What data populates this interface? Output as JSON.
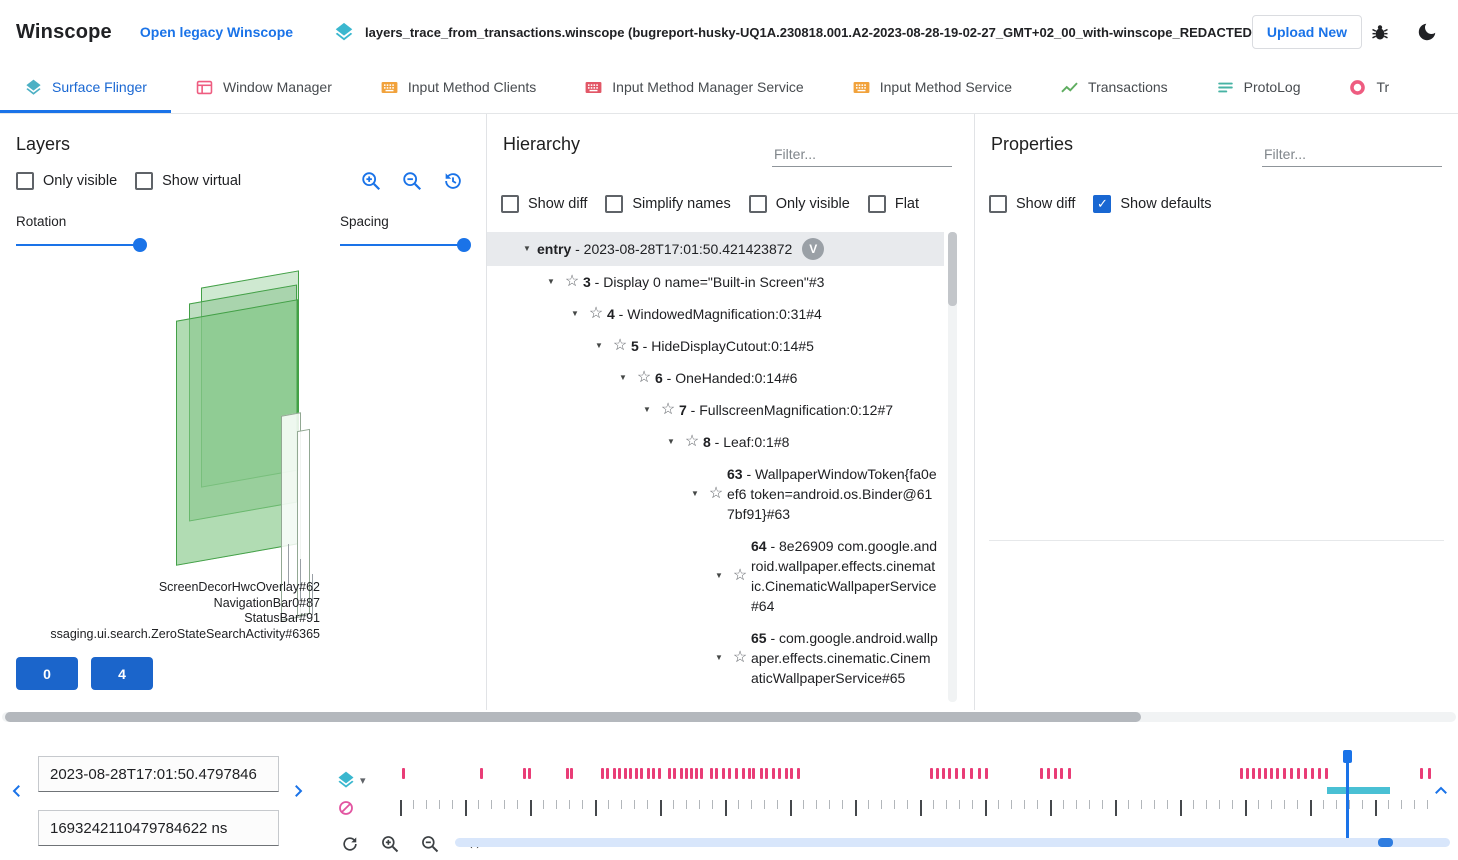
{
  "topbar": {
    "app_title": "Winscope",
    "legacy_link": "Open legacy Winscope",
    "trace_filename": "layers_trace_from_transactions.winscope (bugreport-husky-UQ1A.230818.001.A2-2023-08-28-19-02-27_GMT+02_00_with-winscope_REDACTED.zip)",
    "upload_button": "Upload New"
  },
  "tabs": [
    {
      "label": "Surface Flinger",
      "icon": "layers-icon",
      "color": "#4cb0c4",
      "active": true
    },
    {
      "label": "Window Manager",
      "icon": "window-icon",
      "color": "#ee5c80",
      "active": false
    },
    {
      "label": "Input Method Clients",
      "icon": "keyboard-icon",
      "color": "#f1a23c",
      "active": false
    },
    {
      "label": "Input Method Manager Service",
      "icon": "keyboard-icon",
      "color": "#e25767",
      "active": false
    },
    {
      "label": "Input Method Service",
      "icon": "keyboard-icon",
      "color": "#f1a23c",
      "active": false
    },
    {
      "label": "Transactions",
      "icon": "chart-icon",
      "color": "#5fad60",
      "active": false
    },
    {
      "label": "ProtoLog",
      "icon": "list-icon",
      "color": "#47b3a4",
      "active": false
    },
    {
      "label": "Tr",
      "icon": "donut-icon",
      "color": "#ee5c80",
      "active": false
    }
  ],
  "layers_panel": {
    "title": "Layers",
    "checkboxes": [
      {
        "label": "Only visible",
        "checked": false
      },
      {
        "label": "Show virtual",
        "checked": false
      }
    ],
    "rotation_label": "Rotation",
    "spacing_label": "Spacing",
    "rotation_pct": 100,
    "spacing_pct": 100,
    "layer_labels": [
      "ScreenDecorHwcOverlay#62",
      "NavigationBar0#87",
      "StatusBar#91",
      "ssaging.ui.search.ZeroStateSearchActivity#6365"
    ],
    "display_buttons": [
      "0",
      "4"
    ]
  },
  "hierarchy_panel": {
    "title": "Hierarchy",
    "filter_placeholder": "Filter...",
    "checkboxes": [
      {
        "label": "Show diff",
        "checked": false
      },
      {
        "label": "Simplify names",
        "checked": false
      },
      {
        "label": "Only visible",
        "checked": false
      },
      {
        "label": "Flat",
        "checked": false
      }
    ],
    "tree": [
      {
        "level": 0,
        "id": "entry",
        "name": "2023-08-28T17:01:50.421423872",
        "star": false,
        "selected": true,
        "chip": "V"
      },
      {
        "level": 1,
        "id": "3",
        "name": "Display 0 name=\"Built-in Screen\"#3",
        "star": true
      },
      {
        "level": 2,
        "id": "4",
        "name": "WindowedMagnification:0:31#4",
        "star": true
      },
      {
        "level": 3,
        "id": "5",
        "name": "HideDisplayCutout:0:14#5",
        "star": true
      },
      {
        "level": 4,
        "id": "6",
        "name": "OneHanded:0:14#6",
        "star": true
      },
      {
        "level": 5,
        "id": "7",
        "name": "FullscreenMagnification:0:12#7",
        "star": true
      },
      {
        "level": 6,
        "id": "8",
        "name": "Leaf:0:1#8",
        "star": true
      },
      {
        "level": 7,
        "id": "63",
        "name": "WallpaperWindowToken{fa0eef6 token=android.os.Binder@617bf91}#63",
        "star": true
      },
      {
        "level": 8,
        "id": "64",
        "name": "8e26909 com.google.android.wallpaper.effects.cinematic.CinematicWallpaperService#64",
        "star": true
      },
      {
        "level": 8,
        "id": "65",
        "name": "com.google.android.wallpaper.effects.cinematic.CinematicWallpaperService#65",
        "star": true
      }
    ]
  },
  "properties_panel": {
    "title": "Properties",
    "filter_placeholder": "Filter...",
    "checkboxes": [
      {
        "label": "Show diff",
        "checked": false
      },
      {
        "label": "Show defaults",
        "checked": true
      }
    ]
  },
  "timeline": {
    "timestamp_human": "2023-08-28T17:01:50.4797846",
    "timestamp_ns": "1693242110479784622 ns",
    "event_ticks_pct": [
      0.2,
      7.8,
      11.9,
      12.4,
      16.1,
      16.5,
      19.5,
      20.0,
      20.6,
      21.1,
      21.7,
      22.2,
      22.8,
      23.3,
      23.9,
      24.4,
      25.0,
      26.0,
      26.5,
      27.1,
      27.6,
      28.1,
      28.6,
      29.1,
      30.0,
      30.5,
      31.2,
      31.8,
      32.5,
      33.1,
      33.7,
      34.1,
      34.9,
      35.4,
      36.0,
      36.6,
      37.3,
      37.8,
      38.5,
      51.4,
      51.9,
      52.5,
      53.1,
      53.8,
      54.5,
      55.2,
      56.0,
      56.7,
      62.0,
      62.7,
      63.4,
      64.0,
      64.7,
      81.4,
      82.0,
      82.6,
      83.1,
      83.7,
      84.3,
      84.9,
      85.6,
      86.2,
      86.9,
      87.6,
      88.3,
      89.0,
      89.6,
      98.8,
      99.6
    ],
    "ruler_tick_count": 80,
    "cursor_pct": 91.7,
    "highlight_start_pct": 89.8,
    "highlight_width_pct": 6.1,
    "zoom_window_start_pct": 92.8,
    "zoom_window_width_pct": 1.5
  }
}
